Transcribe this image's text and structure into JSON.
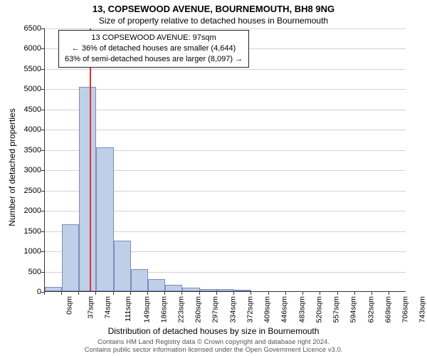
{
  "title": "13, COPSEWOOD AVENUE, BOURNEMOUTH, BH8 9NG",
  "subtitle": "Size of property relative to detached houses in Bournemouth",
  "info_box": {
    "line1": "13 COPSEWOOD AVENUE: 97sqm",
    "line2": "← 36% of detached houses are smaller (4,644)",
    "line3": "63% of semi-detached houses are larger (8,097) →"
  },
  "chart": {
    "type": "histogram",
    "ylabel": "Number of detached properties",
    "xlabel": "Distribution of detached houses by size in Bournemouth",
    "ylim": [
      0,
      6500
    ],
    "ytick_step": 500,
    "xlim": [
      0,
      780
    ],
    "xticks": [
      0,
      37,
      74,
      111,
      149,
      186,
      223,
      260,
      297,
      334,
      372,
      409,
      446,
      483,
      520,
      557,
      594,
      632,
      669,
      706,
      743
    ],
    "x_unit": "sqm",
    "bar_fill": "#c0cfe8",
    "bar_stroke": "#7a8fb8",
    "grid_color": "#d3d3d3",
    "background": "#ffffff",
    "axis_color": "#333333",
    "marker_color": "#e03030",
    "marker_x": 97,
    "bars": [
      {
        "x0": 0,
        "x1": 37,
        "count": 100
      },
      {
        "x0": 37,
        "x1": 74,
        "count": 1650
      },
      {
        "x0": 74,
        "x1": 111,
        "count": 5050
      },
      {
        "x0": 111,
        "x1": 149,
        "count": 3550
      },
      {
        "x0": 149,
        "x1": 186,
        "count": 1250
      },
      {
        "x0": 186,
        "x1": 223,
        "count": 550
      },
      {
        "x0": 223,
        "x1": 260,
        "count": 300
      },
      {
        "x0": 260,
        "x1": 297,
        "count": 150
      },
      {
        "x0": 297,
        "x1": 334,
        "count": 80
      },
      {
        "x0": 334,
        "x1": 372,
        "count": 60
      },
      {
        "x0": 372,
        "x1": 409,
        "count": 50
      },
      {
        "x0": 409,
        "x1": 446,
        "count": 40
      }
    ]
  },
  "attribution": {
    "line1": "Contains HM Land Registry data © Crown copyright and database right 2024.",
    "line2": "Contains public sector information licensed under the Open Government Licence v3.0."
  }
}
